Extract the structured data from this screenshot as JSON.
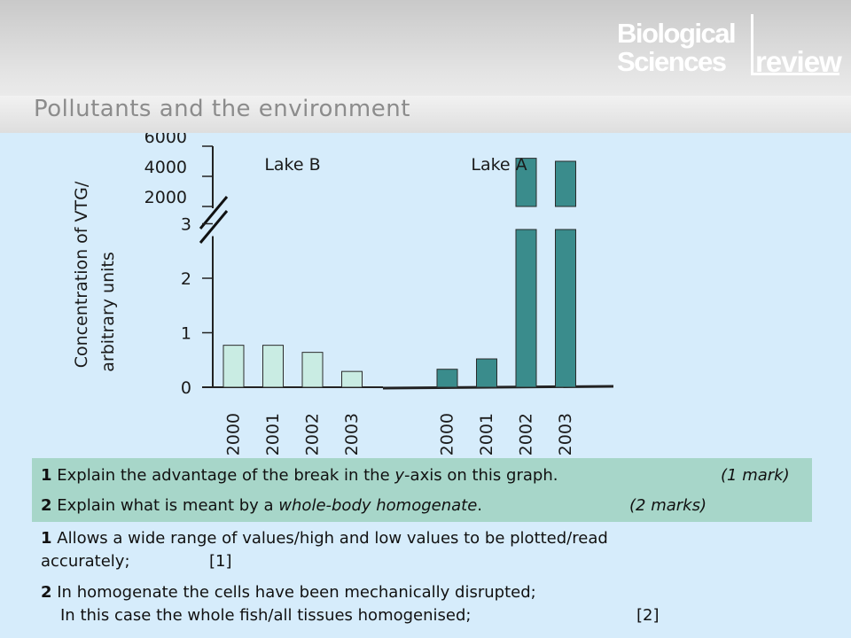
{
  "header": {
    "title": "Pollutants and the environment",
    "logo": {
      "line1": "Biological",
      "line2": "Sciences",
      "line3": "review"
    }
  },
  "chart_data": {
    "type": "bar",
    "ylabel_line1": "Concentration of VTG/",
    "ylabel_line2": "arbitrary units",
    "y_break": true,
    "lower_axis": {
      "ylim": [
        0,
        3
      ],
      "ticks": [
        "0",
        "1",
        "2",
        "3"
      ]
    },
    "upper_axis": {
      "ticks": [
        "2000",
        "4000",
        "6000"
      ]
    },
    "groups": [
      {
        "name": "Lake B",
        "color": "#c9ece3",
        "categories": [
          "2000",
          "2001",
          "2002",
          "2003"
        ],
        "values": [
          0.77,
          0.77,
          0.64,
          0.29
        ]
      },
      {
        "name": "Lake A",
        "color": "#3a8c8c",
        "categories": [
          "2000",
          "2001",
          "2002",
          "2003"
        ],
        "values": [
          0.33,
          0.52,
          5200,
          5000
        ]
      }
    ]
  },
  "questions": {
    "q1_num": "1",
    "q1_text_a": " Explain the advantage of the break in the ",
    "q1_text_y": "y",
    "q1_text_b": "-axis on this graph.",
    "q1_marks": "(1 mark)",
    "q2_num": "2",
    "q2_text_a": " Explain what is meant by a ",
    "q2_text_em": "whole-body homogenate",
    "q2_text_b": ".",
    "q2_marks": "(2 marks)"
  },
  "answers": {
    "a1_num": "1",
    "a1_line1": " Allows a wide range of values/high and low values to be plotted/read",
    "a1_line2": "accurately;",
    "a1_mark": "[1]",
    "a2_num": "2",
    "a2_line1": " In homogenate the cells have been mechanically disrupted;",
    "a2_line2": "In this case the whole fish/all tissues homogenised;",
    "a2_mark": "[2]"
  }
}
